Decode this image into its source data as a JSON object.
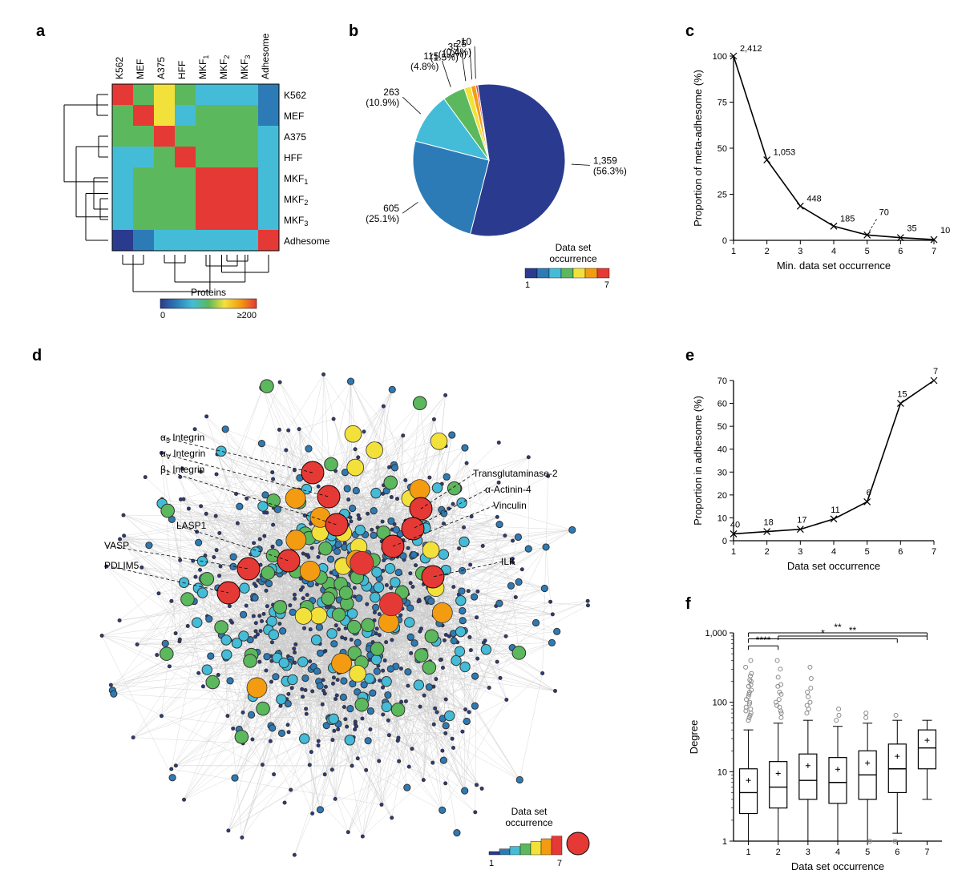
{
  "figure_width": 1200,
  "figure_height": 1116,
  "background_color": "#ffffff",
  "occurrence_colors": [
    "#2a3b8f",
    "#2d7bb6",
    "#44bcd8",
    "#5cb85c",
    "#f3e13b",
    "#f39c12",
    "#e53935"
  ],
  "panels": {
    "a": {
      "label": "a",
      "row_labels": [
        "K562",
        "MEF",
        "A375",
        "HFF",
        "MKF_1",
        "MKF_2",
        "MKF_3",
        "Adhesome"
      ],
      "col_labels": [
        "K562",
        "MEF",
        "A375",
        "HFF",
        "MKF_1",
        "MKF_2",
        "MKF_3",
        "Adhesome"
      ],
      "matrix": [
        [
          7,
          4,
          5,
          4,
          3,
          3,
          3,
          2
        ],
        [
          4,
          7,
          5,
          3,
          4,
          4,
          4,
          2
        ],
        [
          4,
          4,
          7,
          4,
          4,
          4,
          4,
          3
        ],
        [
          3,
          3,
          4,
          7,
          4,
          4,
          4,
          3
        ],
        [
          3,
          4,
          4,
          4,
          7,
          7,
          7,
          3
        ],
        [
          3,
          4,
          4,
          4,
          7,
          7,
          7,
          3
        ],
        [
          3,
          4,
          4,
          4,
          7,
          7,
          7,
          3
        ],
        [
          1,
          2,
          3,
          3,
          3,
          3,
          3,
          7
        ]
      ],
      "colorbar_label": "Proteins",
      "colorbar_ticks": [
        "0",
        "≥200"
      ]
    },
    "b": {
      "label": "b",
      "slices": [
        {
          "value": 1359,
          "pct": "56.3%",
          "color_index": 0,
          "label": "1,359"
        },
        {
          "value": 605,
          "pct": "25.1%",
          "color_index": 1,
          "label": "605"
        },
        {
          "value": 263,
          "pct": "10.9%",
          "color_index": 2,
          "label": "263"
        },
        {
          "value": 115,
          "pct": "4.8%",
          "color_index": 3,
          "label": "115"
        },
        {
          "value": 35,
          "pct": "1.5%",
          "color_index": 4,
          "label": "35"
        },
        {
          "value": 25,
          "pct": "1.0%",
          "color_index": 5,
          "label": "25"
        },
        {
          "value": 10,
          "pct": "0.4%",
          "color_index": 6,
          "label": "10"
        }
      ],
      "legend_title": "Data set\noccurrence",
      "legend_ticks": [
        "1",
        "7"
      ]
    },
    "c": {
      "label": "c",
      "x_label": "Min. data set occurrence",
      "y_label": "Proportion of meta-adhesome (%)",
      "x_values": [
        1,
        2,
        3,
        4,
        5,
        6,
        7
      ],
      "y_values": [
        100,
        43.66,
        18.57,
        7.67,
        2.9,
        1.45,
        0.41
      ],
      "point_labels": [
        "2,412",
        "1,053",
        "448",
        "185",
        "70",
        "35",
        "10"
      ],
      "ylim": [
        0,
        100
      ],
      "ytick_step": 25,
      "line_color": "#000000",
      "marker": "x",
      "annotation_seg": {
        "from": 5,
        "to": 5
      }
    },
    "d": {
      "label": "d",
      "node_labels": [
        "α_5 Integrin",
        "α_V Integrin",
        "β_1 Integrin",
        "VASP",
        "PDLIM5",
        "LASP1",
        "Transglutaminase-2",
        "α-Actinin-4",
        "Vinculin",
        "ILK"
      ],
      "legend_title": "Data set\noccurrence",
      "legend_ticks": [
        "1",
        "7"
      ],
      "n_nodes": 900,
      "n_edges": 2200,
      "edge_color": "#c9c9c9",
      "edge_width": 0.35
    },
    "e": {
      "label": "e",
      "x_label": "Data set occurrence",
      "y_label": "Proportion in adhesome (%)",
      "x_values": [
        1,
        2,
        3,
        4,
        5,
        6,
        7
      ],
      "y_values": [
        3,
        4,
        5,
        9.5,
        17,
        60,
        70
      ],
      "point_labels": [
        "40",
        "18",
        "17",
        "11",
        "6",
        "15",
        "7"
      ],
      "ylim": [
        0,
        70
      ],
      "ytick_step": 10,
      "line_color": "#000000",
      "marker": "x"
    },
    "f": {
      "label": "f",
      "x_label": "Data set occurrence",
      "y_label": "Degree",
      "x_values": [
        1,
        2,
        3,
        4,
        5,
        6,
        7
      ],
      "yticks": [
        1,
        10,
        100,
        1000
      ],
      "ytick_labels": [
        "1",
        "10",
        "100",
        "1,000"
      ],
      "boxes": [
        {
          "q1": 2.5,
          "med": 5,
          "q3": 11,
          "lw": 1,
          "uw": 40
        },
        {
          "q1": 3,
          "med": 6,
          "q3": 14,
          "lw": 1,
          "uw": 50
        },
        {
          "q1": 4,
          "med": 7.5,
          "q3": 18,
          "lw": 1,
          "uw": 55
        },
        {
          "q1": 3.5,
          "med": 7,
          "q3": 16,
          "lw": 1,
          "uw": 45
        },
        {
          "q1": 4,
          "med": 9,
          "q3": 20,
          "lw": 1,
          "uw": 50
        },
        {
          "q1": 5,
          "med": 11,
          "q3": 25,
          "lw": 1.3,
          "uw": 55
        },
        {
          "q1": 11,
          "med": 22,
          "q3": 40,
          "lw": 4,
          "uw": 55
        }
      ],
      "outliers": [
        [
          60,
          70,
          80,
          95,
          110,
          130,
          150,
          180,
          210,
          260,
          320,
          400,
          55,
          65,
          75,
          85,
          100,
          120,
          140,
          170,
          200,
          240
        ],
        [
          60,
          75,
          90,
          110,
          140,
          180,
          230,
          300,
          400,
          70,
          85,
          100,
          130,
          170
        ],
        [
          70,
          90,
          120,
          160,
          220,
          320,
          80,
          100,
          140
        ],
        [
          55,
          65,
          80
        ],
        [
          1,
          60,
          70
        ],
        [
          1,
          65
        ],
        []
      ],
      "sig": [
        {
          "from": 1,
          "to": 2,
          "label": "****",
          "y": 650
        },
        {
          "from": 1,
          "to": 6,
          "label": "*",
          "y": 820
        },
        {
          "from": 1,
          "to": 7,
          "label": "**",
          "y": 1000
        },
        {
          "from": 2,
          "to": 7,
          "label": "**",
          "y": 900
        }
      ],
      "box_color": "#000000",
      "outlier_color": "#888888"
    }
  }
}
